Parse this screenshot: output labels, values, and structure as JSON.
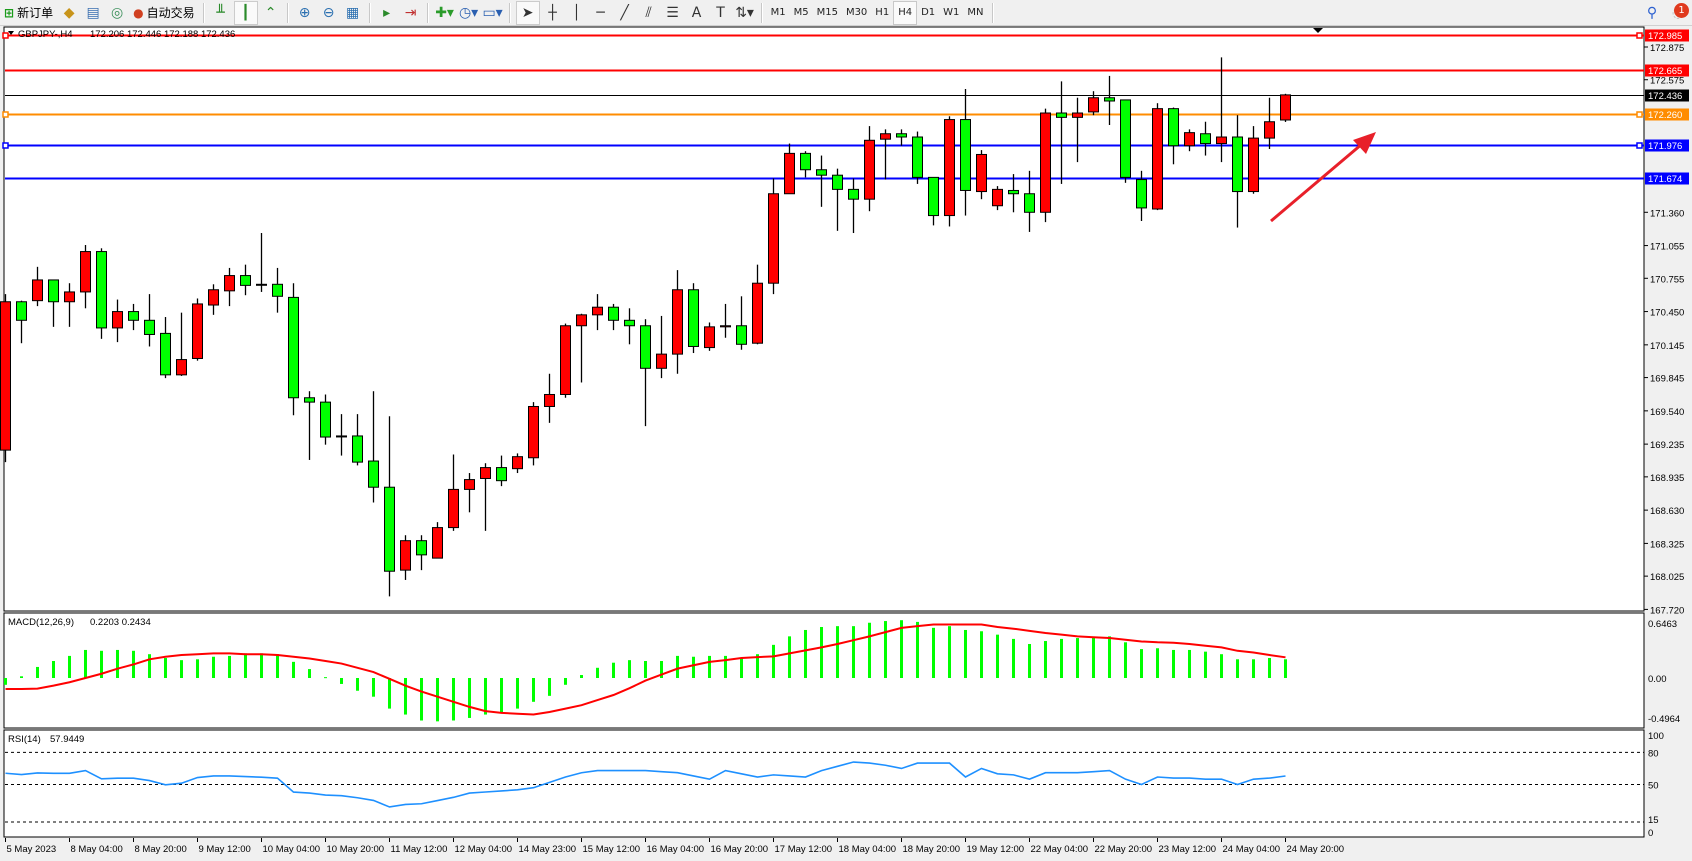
{
  "toolbar": {
    "new_order_label": "新订单",
    "auto_trade_label": "自动交易",
    "timeframes": [
      "M1",
      "M5",
      "M15",
      "M30",
      "H1",
      "H4",
      "D1",
      "W1",
      "MN"
    ],
    "active_timeframe": "H4",
    "notification_count": "1"
  },
  "chart_header": {
    "symbol": "GBPJPY-,H4",
    "ohlc": "172.206 172.446 172.188 172.436"
  },
  "colors": {
    "bull_candle": "#ff0000",
    "bear_candle": "#00ff00",
    "macd_histogram": "#00ff00",
    "macd_signal": "#ff0000",
    "rsi_line": "#1e90ff",
    "arrow": "#e8202a"
  },
  "price_axis": {
    "ticks": [
      "172.875",
      "172.575",
      "171.360",
      "171.055",
      "170.755",
      "170.450",
      "170.145",
      "169.845",
      "169.540",
      "169.235",
      "168.935",
      "168.630",
      "168.325",
      "168.025",
      "167.720"
    ]
  },
  "levels": [
    {
      "price": 172.985,
      "label": "172.985",
      "color": "#ff0000"
    },
    {
      "price": 172.665,
      "label": "172.665",
      "color": "#ff0000"
    },
    {
      "price": 172.436,
      "label": "172.436",
      "color": "#000000"
    },
    {
      "price": 172.26,
      "label": "172.260",
      "color": "#ff8c00"
    },
    {
      "price": 171.976,
      "label": "171.976",
      "color": "#0000ff"
    },
    {
      "price": 171.674,
      "label": "171.674",
      "color": "#0000ff"
    }
  ],
  "time_axis": [
    "5 May 2023",
    "8 May 04:00",
    "8 May 20:00",
    "9 May 12:00",
    "10 May 04:00",
    "10 May 20:00",
    "11 May 12:00",
    "12 May 04:00",
    "14 May 23:00",
    "15 May 12:00",
    "16 May 04:00",
    "16 May 20:00",
    "17 May 12:00",
    "18 May 04:00",
    "18 May 20:00",
    "19 May 12:00",
    "22 May 04:00",
    "22 May 20:00",
    "23 May 12:00",
    "24 May 04:00",
    "24 May 20:00"
  ],
  "chart_data": [
    {
      "type": "candlestick",
      "title": "GBPJPY-,H4",
      "ylim": [
        167.72,
        172.985
      ],
      "ohlc": [
        [
          169.18,
          170.61,
          169.07,
          170.54
        ],
        [
          170.54,
          170.55,
          170.16,
          170.37
        ],
        [
          170.55,
          170.86,
          170.5,
          170.74
        ],
        [
          170.74,
          170.74,
          170.31,
          170.54
        ],
        [
          170.54,
          170.71,
          170.31,
          170.63
        ],
        [
          170.63,
          171.06,
          170.48,
          171.0
        ],
        [
          171.0,
          171.03,
          170.2,
          170.3
        ],
        [
          170.3,
          170.56,
          170.17,
          170.45
        ],
        [
          170.45,
          170.52,
          170.28,
          170.37
        ],
        [
          170.37,
          170.61,
          170.13,
          170.24
        ],
        [
          170.25,
          170.4,
          169.84,
          169.87
        ],
        [
          169.87,
          170.44,
          169.86,
          170.01
        ],
        [
          170.02,
          170.57,
          170.0,
          170.52
        ],
        [
          170.51,
          170.7,
          170.42,
          170.65
        ],
        [
          170.64,
          170.85,
          170.5,
          170.78
        ],
        [
          170.78,
          170.88,
          170.6,
          170.69
        ],
        [
          170.7,
          171.17,
          170.63,
          170.7
        ],
        [
          170.7,
          170.85,
          170.44,
          170.59
        ],
        [
          170.58,
          170.71,
          169.5,
          169.66
        ],
        [
          169.66,
          169.72,
          169.09,
          169.62
        ],
        [
          169.62,
          169.69,
          169.23,
          169.3
        ],
        [
          169.31,
          169.51,
          169.13,
          169.31
        ],
        [
          169.31,
          169.51,
          169.04,
          169.07
        ],
        [
          169.08,
          169.72,
          168.7,
          168.84
        ],
        [
          168.84,
          169.49,
          167.84,
          168.07
        ],
        [
          168.08,
          168.4,
          167.99,
          168.35
        ],
        [
          168.35,
          168.4,
          168.08,
          168.22
        ],
        [
          168.19,
          168.52,
          168.19,
          168.47
        ],
        [
          168.47,
          169.14,
          168.44,
          168.82
        ],
        [
          168.82,
          168.97,
          168.61,
          168.91
        ],
        [
          168.92,
          169.06,
          168.44,
          169.02
        ],
        [
          169.02,
          169.13,
          168.85,
          168.9
        ],
        [
          169.01,
          169.15,
          168.97,
          169.12
        ],
        [
          169.11,
          169.62,
          169.04,
          169.58
        ],
        [
          169.58,
          169.88,
          169.43,
          169.69
        ],
        [
          169.69,
          170.34,
          169.66,
          170.32
        ],
        [
          170.32,
          170.43,
          169.8,
          170.42
        ],
        [
          170.42,
          170.61,
          170.28,
          170.49
        ],
        [
          170.49,
          170.52,
          170.28,
          170.37
        ],
        [
          170.37,
          170.48,
          170.15,
          170.32
        ],
        [
          170.32,
          170.38,
          169.4,
          169.93
        ],
        [
          169.93,
          170.41,
          169.84,
          170.06
        ],
        [
          170.06,
          170.83,
          169.88,
          170.65
        ],
        [
          170.65,
          170.71,
          170.07,
          170.13
        ],
        [
          170.12,
          170.35,
          170.09,
          170.31
        ],
        [
          170.31,
          170.52,
          170.21,
          170.32
        ],
        [
          170.32,
          170.59,
          170.1,
          170.15
        ],
        [
          170.16,
          170.88,
          170.15,
          170.71
        ],
        [
          170.71,
          171.67,
          170.61,
          171.53
        ],
        [
          171.53,
          171.99,
          171.53,
          171.9
        ],
        [
          171.9,
          171.92,
          171.68,
          171.75
        ],
        [
          171.75,
          171.88,
          171.41,
          171.7
        ],
        [
          171.7,
          171.76,
          171.19,
          171.57
        ],
        [
          171.57,
          171.67,
          171.17,
          171.48
        ],
        [
          171.48,
          172.15,
          171.37,
          172.02
        ],
        [
          172.03,
          172.12,
          171.66,
          172.08
        ],
        [
          172.08,
          172.12,
          171.97,
          172.05
        ],
        [
          172.05,
          172.1,
          171.62,
          171.68
        ],
        [
          171.68,
          171.68,
          171.24,
          171.33
        ],
        [
          171.33,
          172.24,
          171.23,
          172.21
        ],
        [
          172.21,
          172.49,
          171.33,
          171.56
        ],
        [
          171.55,
          171.93,
          171.48,
          171.89
        ],
        [
          171.42,
          171.6,
          171.38,
          171.57
        ],
        [
          171.56,
          171.71,
          171.36,
          171.53
        ],
        [
          171.53,
          171.74,
          171.18,
          171.36
        ],
        [
          171.36,
          172.31,
          171.27,
          172.27
        ],
        [
          172.27,
          172.56,
          171.62,
          172.23
        ],
        [
          172.23,
          172.41,
          171.82,
          172.27
        ],
        [
          172.28,
          172.47,
          172.25,
          172.41
        ],
        [
          172.41,
          172.61,
          172.16,
          172.38
        ],
        [
          172.39,
          172.39,
          171.63,
          171.68
        ],
        [
          171.66,
          171.74,
          171.28,
          171.4
        ],
        [
          171.39,
          172.36,
          171.38,
          172.31
        ],
        [
          172.31,
          172.32,
          171.8,
          171.97
        ],
        [
          171.97,
          172.12,
          171.92,
          172.09
        ],
        [
          172.08,
          172.19,
          171.88,
          171.99
        ],
        [
          171.99,
          172.78,
          171.82,
          172.05
        ],
        [
          172.05,
          172.25,
          171.22,
          171.55
        ],
        [
          171.55,
          172.15,
          171.53,
          172.04
        ],
        [
          172.04,
          172.41,
          171.94,
          172.19
        ],
        [
          172.206,
          172.446,
          172.188,
          172.436
        ]
      ]
    },
    {
      "type": "bar",
      "title": "MACD(12,26,9)",
      "values_label": "0.2203 0.2434",
      "ylim": [
        -0.4964,
        0.6463
      ],
      "tick_labels": [
        "0.6463",
        "0.00",
        "-0.4964"
      ],
      "series": [
        {
          "kind": "histogram",
          "values": [
            -0.08,
            0.02,
            0.13,
            0.2,
            0.26,
            0.33,
            0.32,
            0.33,
            0.32,
            0.28,
            0.235,
            0.21,
            0.22,
            0.25,
            0.26,
            0.29,
            0.29,
            0.28,
            0.19,
            0.105,
            0.01,
            -0.07,
            -0.15,
            -0.22,
            -0.36,
            -0.43,
            -0.5,
            -0.51,
            -0.5,
            -0.47,
            -0.43,
            -0.41,
            -0.36,
            -0.28,
            -0.21,
            -0.08,
            0.035,
            0.12,
            0.18,
            0.21,
            0.2,
            0.2,
            0.26,
            0.25,
            0.26,
            0.26,
            0.235,
            0.28,
            0.39,
            0.49,
            0.565,
            0.6,
            0.61,
            0.61,
            0.65,
            0.67,
            0.68,
            0.66,
            0.59,
            0.61,
            0.565,
            0.55,
            0.51,
            0.46,
            0.4,
            0.435,
            0.46,
            0.47,
            0.48,
            0.49,
            0.42,
            0.34,
            0.35,
            0.33,
            0.33,
            0.31,
            0.28,
            0.22,
            0.22,
            0.235,
            0.2203
          ]
        },
        {
          "kind": "signal",
          "values": [
            -0.13,
            -0.13,
            -0.125,
            -0.09,
            -0.05,
            0.0,
            0.05,
            0.11,
            0.16,
            0.22,
            0.25,
            0.27,
            0.28,
            0.29,
            0.29,
            0.28,
            0.28,
            0.27,
            0.25,
            0.23,
            0.2,
            0.17,
            0.12,
            0.07,
            -0.01,
            -0.09,
            -0.16,
            -0.22,
            -0.28,
            -0.34,
            -0.39,
            -0.41,
            -0.42,
            -0.43,
            -0.4,
            -0.36,
            -0.32,
            -0.26,
            -0.2,
            -0.12,
            -0.03,
            0.04,
            0.11,
            0.15,
            0.19,
            0.21,
            0.235,
            0.245,
            0.255,
            0.29,
            0.325,
            0.36,
            0.4,
            0.445,
            0.49,
            0.54,
            0.59,
            0.61,
            0.63,
            0.63,
            0.63,
            0.63,
            0.6,
            0.58,
            0.555,
            0.53,
            0.51,
            0.49,
            0.48,
            0.47,
            0.45,
            0.43,
            0.42,
            0.415,
            0.4,
            0.38,
            0.36,
            0.32,
            0.3,
            0.27,
            0.2434
          ]
        }
      ]
    },
    {
      "type": "line",
      "title": "RSI(14)",
      "values_label": "57.9449",
      "ylim": [
        0,
        100
      ],
      "tick_labels": [
        "100",
        "80",
        "50",
        "15",
        "0"
      ],
      "levels": [
        80,
        50,
        15
      ],
      "values": [
        60.5,
        59.3,
        60.8,
        60.5,
        60.5,
        63,
        55.3,
        55.9,
        55.9,
        53.7,
        49.7,
        51.2,
        56.5,
        58,
        58,
        57.4,
        56.8,
        55.9,
        42.9,
        42,
        40.1,
        39.5,
        37.6,
        35.1,
        29,
        31.4,
        32,
        35,
        38,
        42,
        43,
        44,
        45,
        47,
        52,
        57,
        61,
        63,
        63,
        63,
        63,
        62,
        61,
        58,
        55,
        63,
        60,
        57,
        59,
        58,
        57,
        63,
        67,
        71,
        70,
        68,
        65,
        70,
        70,
        70,
        57,
        65,
        60,
        59,
        55,
        61,
        61,
        61,
        62,
        63,
        55,
        50,
        57,
        56,
        56,
        55,
        55,
        50,
        55,
        56,
        57.9449
      ]
    }
  ]
}
